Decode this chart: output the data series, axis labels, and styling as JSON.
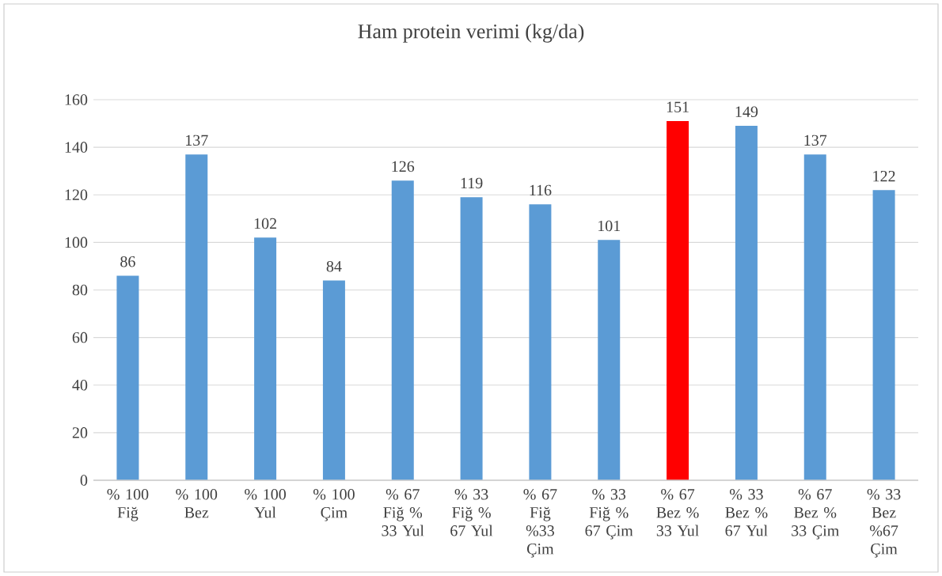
{
  "chart_data": {
    "type": "bar",
    "title": "Ham protein verimi (kg/da)",
    "categories": [
      "% 100 Fiğ",
      "% 100 Bez",
      "% 100 Yul",
      "% 100 Çim",
      "% 67 Fiğ % 33 Yul",
      "% 33 Fiğ % 67 Yul",
      "% 67 Fiğ %33 Çim",
      "% 33 Fiğ % 67 Çim",
      "% 67 Bez % 33 Yul",
      "% 33 Bez % 67 Yul",
      "% 67 Bez % 33 Çim",
      "% 33 Bez %67 Çim"
    ],
    "values": [
      86,
      137,
      102,
      84,
      126,
      119,
      116,
      101,
      151,
      149,
      137,
      122
    ],
    "colors": [
      "#5b9bd5",
      "#5b9bd5",
      "#5b9bd5",
      "#5b9bd5",
      "#5b9bd5",
      "#5b9bd5",
      "#5b9bd5",
      "#5b9bd5",
      "#ff0000",
      "#5b9bd5",
      "#5b9bd5",
      "#5b9bd5"
    ],
    "ylim": [
      0,
      160
    ],
    "yticks": [
      0,
      20,
      40,
      60,
      80,
      100,
      120,
      140,
      160
    ],
    "grid": "y",
    "data_labels": true
  }
}
